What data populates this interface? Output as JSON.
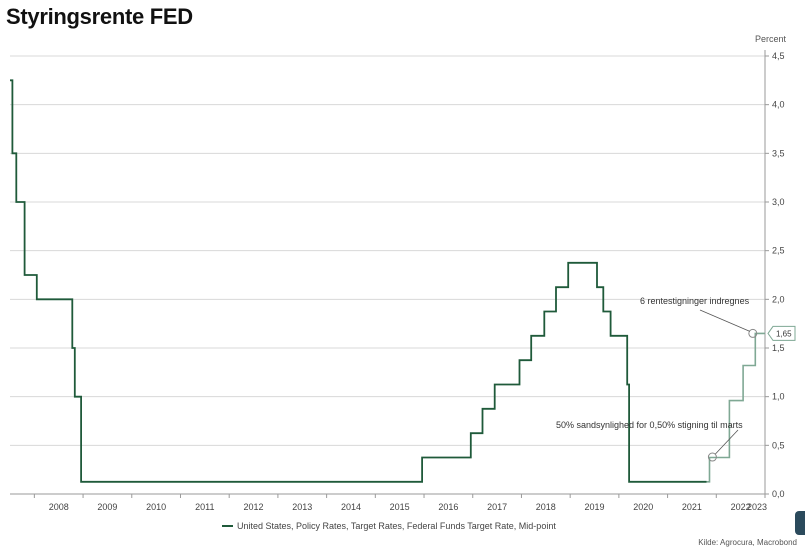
{
  "title": "Styringsrente FED",
  "legend_label": "United States, Policy Rates, Target Rates, Federal Funds Target Rate, Mid-point",
  "source": "Kilde: Agrocura, Macrobond",
  "colors": {
    "actual": "#1f5a3a",
    "forecast": "#7fa894",
    "grid": "#d8d8d8",
    "axis": "#9a9a9a"
  },
  "chart_data": {
    "type": "line",
    "title": "Styringsrente FED",
    "ylabel": "Percent",
    "ylim": [
      0,
      4.5
    ],
    "xlim": [
      2007.5,
      2023.0
    ],
    "yticks": [
      "0,0",
      "0,5",
      "1,0",
      "1,5",
      "2,0",
      "2,5",
      "3,0",
      "3,5",
      "4,0",
      "4,5"
    ],
    "yticks_values": [
      0,
      0.5,
      1.0,
      1.5,
      2.0,
      2.5,
      3.0,
      3.5,
      4.0,
      4.5
    ],
    "xtick_labels": [
      "2008",
      "2009",
      "2010",
      "2011",
      "2012",
      "2013",
      "2014",
      "2015",
      "2016",
      "2017",
      "2018",
      "2019",
      "2020",
      "2021",
      "2022",
      "2023"
    ],
    "grid": true,
    "legend_position": "bottom",
    "series": [
      {
        "name": "United States, Policy Rates, Target Rates, Federal Funds Target Rate, Mid-point",
        "step": true,
        "x": [
          2007.5,
          2007.55,
          2007.63,
          2007.75,
          2007.8,
          2007.98,
          2008.05,
          2008.25,
          2008.78,
          2008.83,
          2008.96,
          2015.96,
          2016.96,
          2017.2,
          2017.45,
          2017.96,
          2018.2,
          2018.47,
          2018.71,
          2018.96,
          2019.55,
          2019.68,
          2019.83,
          2020.17,
          2020.21,
          2021.8
        ],
        "y": [
          4.25,
          3.5,
          3.0,
          3.0,
          2.25,
          2.25,
          2.0,
          2.0,
          1.5,
          1.0,
          0.125,
          0.375,
          0.625,
          0.875,
          1.125,
          1.375,
          1.625,
          1.875,
          2.125,
          2.375,
          2.125,
          1.875,
          1.625,
          1.125,
          0.125,
          0.125
        ]
      },
      {
        "name": "",
        "step": true,
        "x": [
          2021.8,
          2021.86,
          2022.0,
          2022.27,
          2022.55,
          2022.8,
          2023.0
        ],
        "y": [
          0.125,
          0.375,
          0.375,
          0.96,
          1.32,
          1.65,
          1.65
        ]
      }
    ],
    "value_badge": "1,65",
    "annotations": [
      {
        "text": "6 rentestigninger indregnes",
        "x": 2022.75,
        "y": 1.65
      },
      {
        "text": "50% sandsynlighed for 0,50% stigning til marts",
        "x": 2021.92,
        "y": 0.38
      }
    ]
  }
}
